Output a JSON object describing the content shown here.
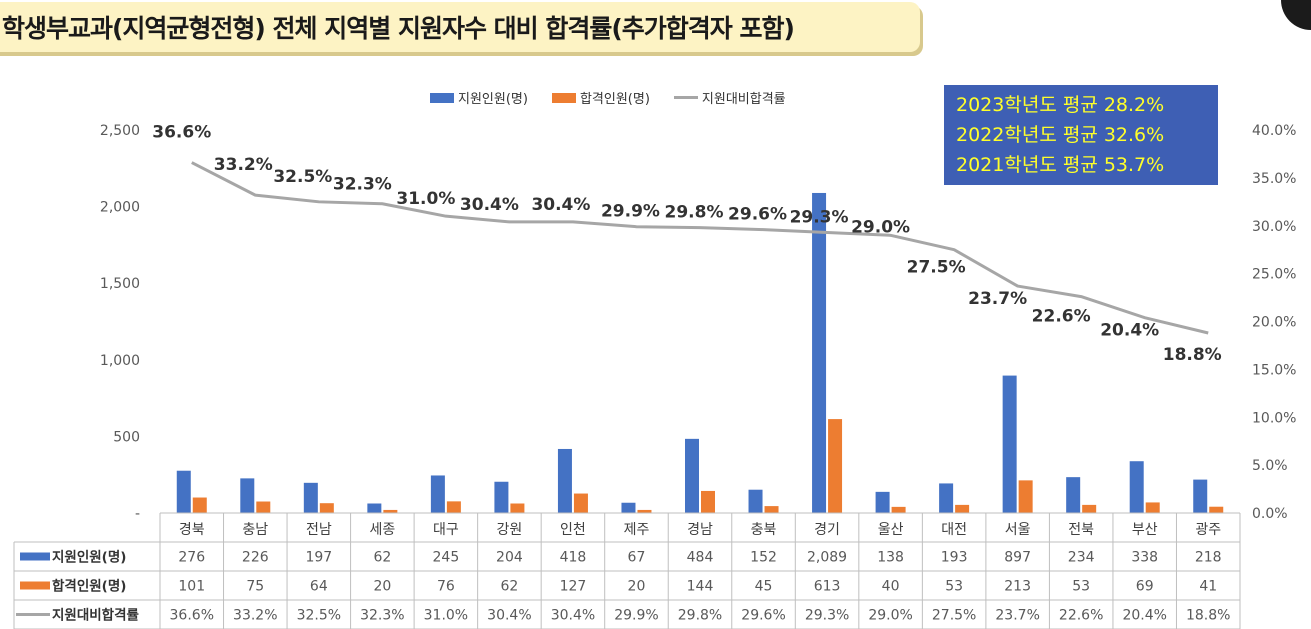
{
  "title": "학생부교과(지역균형전형) 전체 지역별 지원자수 대비 합격률(추가합격자 포함)",
  "averages": [
    "2023학년도 평균 28.2%",
    "2022학년도 평균 32.6%",
    "2021학년도 평균 53.7%"
  ],
  "colors": {
    "applicants": "#4472c4",
    "admitted": "#ed7d31",
    "rate": "#a6a6a6",
    "avg_box_bg": "#3e5fb4",
    "avg_box_text": "#ffff2a",
    "title_bg": "#fdf3c4"
  },
  "chart_data": {
    "type": "bar",
    "categories": [
      "경북",
      "충남",
      "전남",
      "세종",
      "대구",
      "강원",
      "인천",
      "제주",
      "경남",
      "충북",
      "경기",
      "울산",
      "대전",
      "서울",
      "전북",
      "부산",
      "광주"
    ],
    "series": [
      {
        "name": "지원인원(명)",
        "type": "bar",
        "axis": "left",
        "values": [
          276,
          226,
          197,
          62,
          245,
          204,
          418,
          67,
          484,
          152,
          2089,
          138,
          193,
          897,
          234,
          338,
          218
        ],
        "labels": [
          "276",
          "226",
          "197",
          "62",
          "245",
          "204",
          "418",
          "67",
          "484",
          "152",
          "2,089",
          "138",
          "193",
          "897",
          "234",
          "338",
          "218"
        ]
      },
      {
        "name": "합격인원(명)",
        "type": "bar",
        "axis": "left",
        "values": [
          101,
          75,
          64,
          20,
          76,
          62,
          127,
          20,
          144,
          45,
          613,
          40,
          53,
          213,
          53,
          69,
          41
        ],
        "labels": [
          "101",
          "75",
          "64",
          "20",
          "76",
          "62",
          "127",
          "20",
          "144",
          "45",
          "613",
          "40",
          "53",
          "213",
          "53",
          "69",
          "41"
        ]
      },
      {
        "name": "지원대비합격률",
        "type": "line",
        "axis": "right",
        "values": [
          36.6,
          33.2,
          32.5,
          32.3,
          31.0,
          30.4,
          30.4,
          29.9,
          29.8,
          29.6,
          29.3,
          29.0,
          27.5,
          23.7,
          22.6,
          20.4,
          18.8
        ],
        "labels": [
          "36.6%",
          "33.2%",
          "32.5%",
          "32.3%",
          "31.0%",
          "30.4%",
          "30.4%",
          "29.9%",
          "29.8%",
          "29.6%",
          "29.3%",
          "29.0%",
          "27.5%",
          "23.7%",
          "22.6%",
          "20.4%",
          "18.8%"
        ]
      }
    ],
    "y_left": {
      "ylim": [
        0,
        2500
      ],
      "ticks": [
        "-",
        "500",
        "1,000",
        "1,500",
        "2,000",
        "2,500"
      ]
    },
    "y_right": {
      "ylim": [
        0,
        40
      ],
      "ticks": [
        "0.0%",
        "5.0%",
        "10.0%",
        "15.0%",
        "20.0%",
        "25.0%",
        "30.0%",
        "35.0%",
        "40.0%"
      ]
    },
    "legend": "top",
    "grid": false,
    "data_table": true
  }
}
